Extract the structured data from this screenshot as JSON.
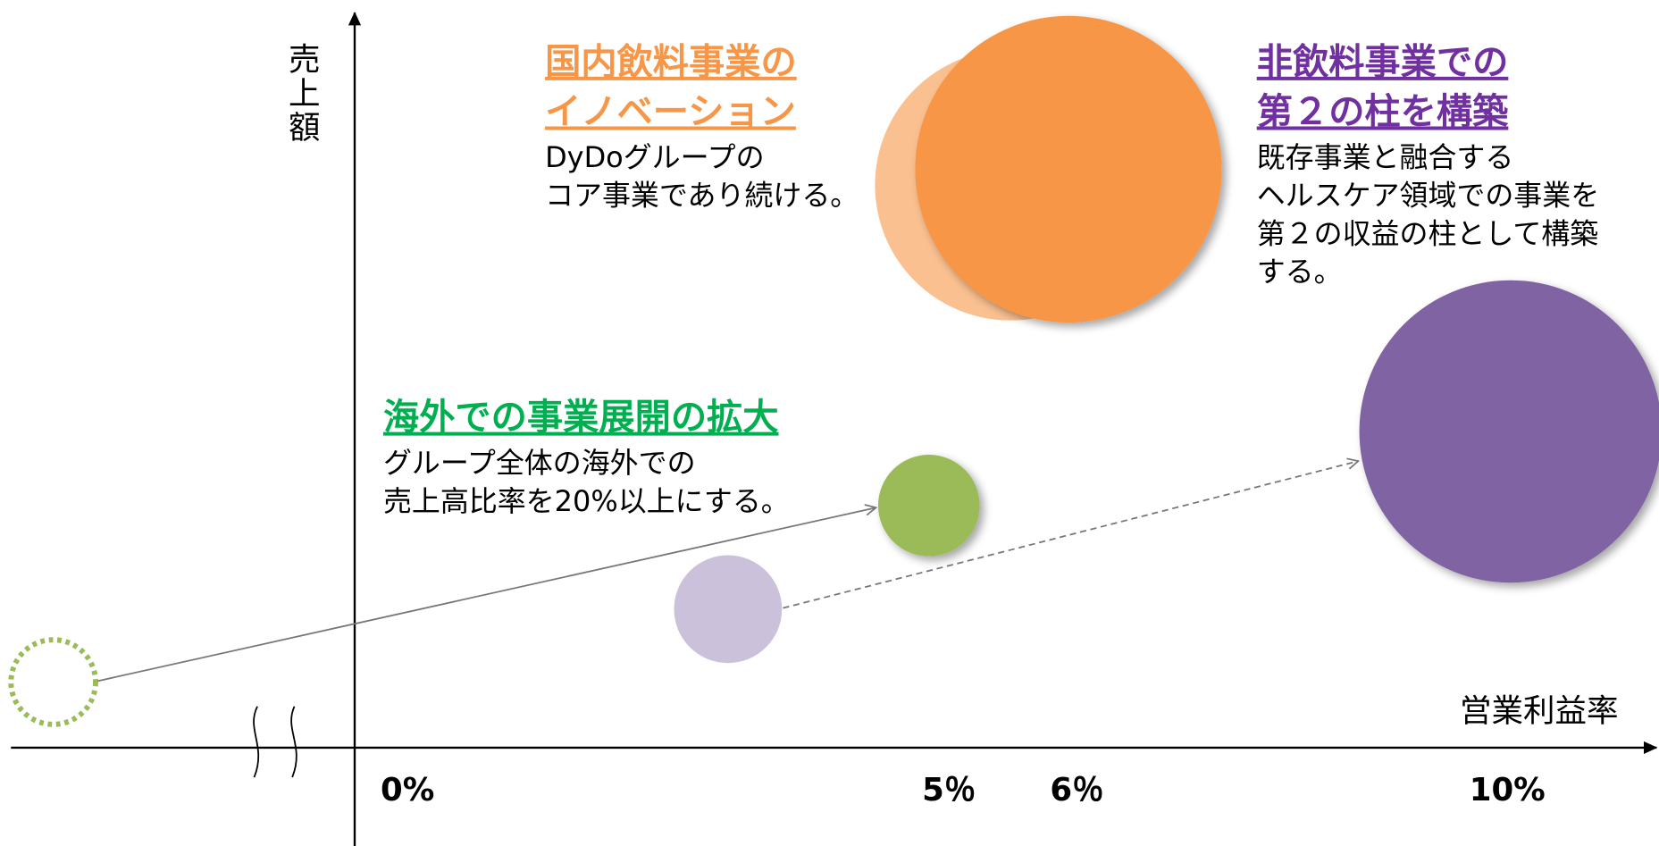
{
  "axes": {
    "y_label": "売上額",
    "x_label": "営業利益率",
    "x_ticks": [
      "0%",
      "5％",
      "6％",
      "10%"
    ]
  },
  "groups": [
    {
      "title_lines": [
        "国内飲料事業の",
        "イノベーション"
      ],
      "body_lines": [
        "DyDoグループの",
        "コア事業であり続ける。"
      ]
    },
    {
      "title_lines": [
        "非飲料事業での",
        "第２の柱を構築"
      ],
      "body_lines": [
        "既存事業と融合する",
        "ヘルスケア領域での事業を",
        "第２の収益の柱として構築",
        "する。"
      ]
    },
    {
      "title_lines": [
        "海外での事業展開の拡大"
      ],
      "body_lines": [
        "グループ全体の海外での",
        "売上高比率を20%以上にする。"
      ]
    }
  ]
}
